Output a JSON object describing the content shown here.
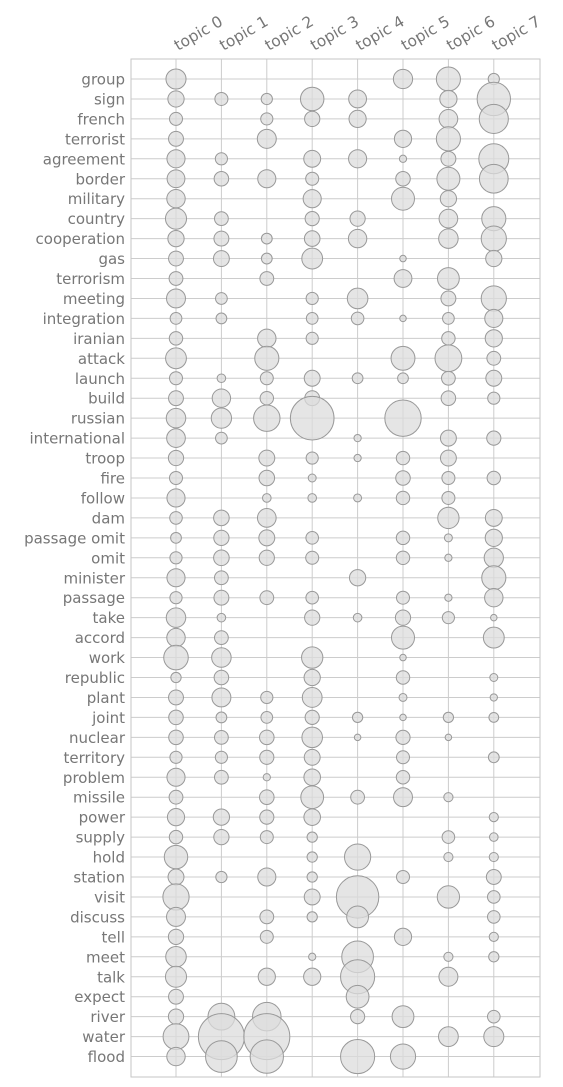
{
  "chart_data": {
    "type": "scatter",
    "encoding": "bubble matrix: x = topic, y = word, bubble size = value",
    "title": "",
    "xlabel": "",
    "ylabel": "",
    "x_categories": [
      "topic 0",
      "topic 1",
      "topic 2",
      "topic 3",
      "topic 4",
      "topic 5",
      "topic 6",
      "topic 7"
    ],
    "y_categories": [
      "group",
      "sign",
      "french",
      "terrorist",
      "agreement",
      "border",
      "military",
      "country",
      "cooperation",
      "gas",
      "terrorism",
      "meeting",
      "integration",
      "iranian",
      "attack",
      "launch",
      "build",
      "russian",
      "international",
      "troop",
      "fire",
      "follow",
      "dam",
      "passage omit",
      "omit",
      "minister",
      "passage",
      "take",
      "accord",
      "work",
      "republic",
      "plant",
      "joint",
      "nuclear",
      "territory",
      "problem",
      "missile",
      "power",
      "supply",
      "hold",
      "station",
      "visit",
      "discuss",
      "tell",
      "meet",
      "talk",
      "expect",
      "river",
      "water",
      "flood"
    ],
    "values": [
      [
        3.8,
        0,
        0,
        0,
        0,
        3.5,
        5.5,
        1.2
      ],
      [
        2.5,
        1.6,
        1.2,
        5.2,
        3.0,
        0,
        2.8,
        10.5
      ],
      [
        1.6,
        0,
        1.4,
        2.2,
        2.8,
        0,
        3.3,
        8.0
      ],
      [
        2.1,
        0,
        3.4,
        0,
        0,
        2.8,
        5.5,
        0
      ],
      [
        3.1,
        1.4,
        0,
        2.7,
        3.1,
        0.5,
        2.1,
        8.5
      ],
      [
        3.0,
        2.0,
        3.1,
        1.6,
        0,
        2.0,
        5.0,
        7.8
      ],
      [
        3.2,
        0,
        0,
        3.1,
        0,
        5.0,
        2.5,
        0
      ],
      [
        4.2,
        1.8,
        0,
        1.9,
        2.2,
        0,
        3.3,
        5.5
      ],
      [
        2.5,
        2.1,
        1.1,
        2.3,
        3.2,
        0,
        3.6,
        6.0
      ],
      [
        2.1,
        2.4,
        1.1,
        4.1,
        0,
        0.4,
        0,
        2.5
      ],
      [
        1.8,
        0,
        1.8,
        0,
        0,
        3.0,
        4.5,
        0
      ],
      [
        3.4,
        1.3,
        0,
        1.4,
        4.0,
        0,
        2.1,
        6.0
      ],
      [
        1.3,
        1.1,
        0,
        1.3,
        1.5,
        0.4,
        1.3,
        3.1
      ],
      [
        1.7,
        0,
        3.2,
        1.4,
        0,
        0,
        1.7,
        2.8
      ],
      [
        4.1,
        0,
        5.5,
        0,
        0,
        5.4,
        6.8,
        1.8
      ],
      [
        1.6,
        0.7,
        1.6,
        2.4,
        1.1,
        1.1,
        1.8,
        2.4
      ],
      [
        2.1,
        3.2,
        1.7,
        2.1,
        0,
        0,
        2.0,
        1.4
      ],
      [
        3.6,
        3.9,
        6.6,
        18.0,
        0,
        12.5,
        0,
        0
      ],
      [
        3.3,
        1.3,
        0,
        0,
        0.5,
        0,
        2.4,
        1.9
      ],
      [
        2.2,
        0,
        2.4,
        1.4,
        0.5,
        1.7,
        2.4,
        0
      ],
      [
        1.6,
        0,
        2.3,
        0.6,
        0,
        2.0,
        1.6,
        1.7
      ],
      [
        3.1,
        0,
        0.7,
        0.7,
        0.6,
        1.7,
        1.6,
        0
      ],
      [
        1.5,
        2.3,
        3.3,
        0,
        0,
        0,
        4.3,
        2.7
      ],
      [
        1.1,
        2.2,
        2.4,
        1.5,
        0,
        1.7,
        0.6,
        2.8
      ],
      [
        1.4,
        2.3,
        2.2,
        1.6,
        0,
        1.7,
        0.5,
        3.5
      ],
      [
        3.1,
        1.8,
        0,
        0,
        2.5,
        0,
        0,
        5.5
      ],
      [
        1.4,
        2.1,
        1.8,
        1.5,
        0,
        1.6,
        0.5,
        3.2
      ],
      [
        3.6,
        0.7,
        0,
        2.2,
        0.7,
        2.2,
        1.4,
        0.4
      ],
      [
        3.2,
        1.8,
        0,
        0,
        0,
        5.0,
        0,
        4.1
      ],
      [
        5.7,
        3.6,
        0,
        4.3,
        0,
        0.4,
        0,
        0
      ],
      [
        1.0,
        2.0,
        0,
        2.5,
        0,
        1.7,
        0,
        0.6
      ],
      [
        2.1,
        3.4,
        1.4,
        3.7,
        0,
        0.6,
        0,
        0.5
      ],
      [
        2.0,
        1.1,
        1.3,
        1.9,
        1.0,
        0.4,
        1.0,
        0.9
      ],
      [
        2.0,
        1.8,
        2.0,
        4.0,
        0.4,
        1.9,
        0.4,
        0
      ],
      [
        1.4,
        1.4,
        1.9,
        2.4,
        0,
        1.6,
        0,
        1.1
      ],
      [
        3.1,
        1.8,
        0.5,
        2.6,
        0,
        1.7,
        0,
        0
      ],
      [
        1.8,
        0,
        2.0,
        4.9,
        1.8,
        3.4,
        0.8,
        0
      ],
      [
        2.8,
        2.5,
        1.9,
        2.6,
        0,
        0,
        0,
        0.8
      ],
      [
        1.7,
        2.2,
        1.6,
        1.0,
        0,
        0,
        1.5,
        0.7
      ],
      [
        5.2,
        0,
        0,
        1.0,
        6.5,
        0,
        0.8,
        0.8
      ],
      [
        2.4,
        1.2,
        3.1,
        1.0,
        0,
        1.6,
        0,
        2.1
      ],
      [
        6.5,
        0,
        0,
        2.4,
        17.0,
        0,
        4.7,
        1.5
      ],
      [
        3.4,
        0,
        1.8,
        1.0,
        4.5,
        0,
        0,
        1.5
      ],
      [
        2.2,
        0,
        1.6,
        0,
        0,
        2.8,
        0,
        0.8
      ],
      [
        4.0,
        0,
        0,
        0.5,
        9.5,
        0,
        0.8,
        1.0
      ],
      [
        4.2,
        0,
        2.8,
        2.8,
        11.0,
        0,
        3.4,
        0
      ],
      [
        2.1,
        0,
        0,
        0,
        4.9,
        0,
        0,
        0
      ],
      [
        2.2,
        6.8,
        7.7,
        0,
        1.9,
        4.5,
        0,
        1.5
      ],
      [
        6.3,
        20.0,
        20.0,
        0,
        0,
        0,
        3.7,
        3.8
      ],
      [
        3.2,
        9.5,
        10.5,
        0,
        11.0,
        6.0,
        0,
        0
      ]
    ]
  }
}
